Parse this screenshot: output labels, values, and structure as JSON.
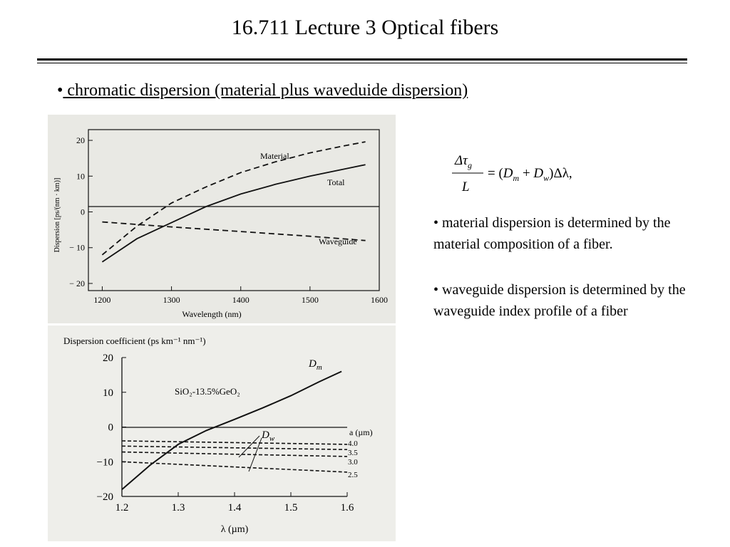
{
  "page": {
    "title": "16.711 Lecture 3 Optical fibers",
    "bullet_symbol": "•",
    "section_heading": " chromatic dispersion (material plus waveduide dispersion)"
  },
  "equation": {
    "numerator": "Δτ",
    "numerator_sub": "g",
    "denominator": "L",
    "rhs_parts": [
      "= (",
      "D",
      "m",
      " + ",
      "D",
      "w",
      ")Δλ,"
    ]
  },
  "notes": [
    "• material dispersion is determined by the material composition of a fiber.",
    "• waveguide dispersion is determined by the waveguide index profile of a fiber"
  ],
  "figure_top": {
    "y_axis_label": "Dispersion [ps/(nm · km)]",
    "x_axis_label": "Wavelength (nm)",
    "x_ticks": [
      "1200",
      "1300",
      "1400",
      "1500",
      "1600"
    ],
    "y_ticks": [
      "20",
      "10",
      "0",
      "− 10",
      "− 20"
    ],
    "curve_labels": {
      "material": "Material",
      "total": "Total",
      "waveguide": "Waveguide"
    }
  },
  "figure_bottom": {
    "y_axis_label": "Dispersion coefficient (ps km⁻¹ nm⁻¹)",
    "x_axis_label": "λ (µm)",
    "x_ticks": [
      "1.2",
      "1.3",
      "1.4",
      "1.5",
      "1.6"
    ],
    "y_ticks": [
      "20",
      "10",
      "0",
      "−10",
      "−20"
    ],
    "material_label": "SiO₂-13.5%GeO₂",
    "dm_label": "D",
    "dm_sub": "m",
    "dw_label": "D",
    "dw_sub": "w",
    "a_header": "a (µm)",
    "a_values": [
      "4.0",
      "3.5",
      "3.0",
      "2.5"
    ]
  },
  "chart_data": [
    {
      "type": "line",
      "xlabel": "Wavelength (nm)",
      "ylabel": "Dispersion [ps/(nm · km)]",
      "xlim": [
        1180,
        1600
      ],
      "ylim": [
        -22,
        23
      ],
      "grid": false,
      "series": [
        {
          "name": "Material",
          "style": "dashed",
          "x": [
            1200,
            1250,
            1300,
            1350,
            1400,
            1450,
            1500,
            1550,
            1580
          ],
          "y": [
            -12,
            -4,
            2.5,
            7,
            11,
            14,
            16.5,
            18.5,
            19.6
          ]
        },
        {
          "name": "Total",
          "style": "solid",
          "x": [
            1200,
            1250,
            1300,
            1350,
            1400,
            1450,
            1500,
            1550,
            1580
          ],
          "y": [
            -14,
            -7.5,
            -3,
            1.5,
            5,
            7.7,
            10,
            12,
            13.2
          ]
        },
        {
          "name": "Waveguide",
          "style": "dashed",
          "x": [
            1200,
            1300,
            1400,
            1500,
            1580
          ],
          "y": [
            -2.8,
            -4.2,
            -5.5,
            -6.8,
            -8
          ]
        }
      ]
    },
    {
      "type": "line",
      "xlabel": "λ (µm)",
      "ylabel": "Dispersion coefficient (ps km⁻¹ nm⁻¹)",
      "xlim": [
        1.2,
        1.6
      ],
      "ylim": [
        -20,
        20
      ],
      "grid": false,
      "series": [
        {
          "name": "Dm",
          "style": "solid",
          "x": [
            1.2,
            1.25,
            1.3,
            1.35,
            1.4,
            1.45,
            1.5,
            1.55,
            1.59
          ],
          "y": [
            -18,
            -11,
            -5,
            -1,
            2.2,
            5.5,
            9,
            13,
            16
          ]
        },
        {
          "name": "4.0",
          "style": "dashed",
          "x": [
            1.2,
            1.6
          ],
          "y": [
            -4,
            -5
          ]
        },
        {
          "name": "3.5",
          "style": "dashed",
          "x": [
            1.2,
            1.6
          ],
          "y": [
            -5.5,
            -6.5
          ]
        },
        {
          "name": "3.0",
          "style": "dashed",
          "x": [
            1.2,
            1.6
          ],
          "y": [
            -7.2,
            -8.5
          ]
        },
        {
          "name": "2.5",
          "style": "dashed",
          "x": [
            1.2,
            1.6
          ],
          "y": [
            -10,
            -13
          ]
        }
      ]
    }
  ]
}
